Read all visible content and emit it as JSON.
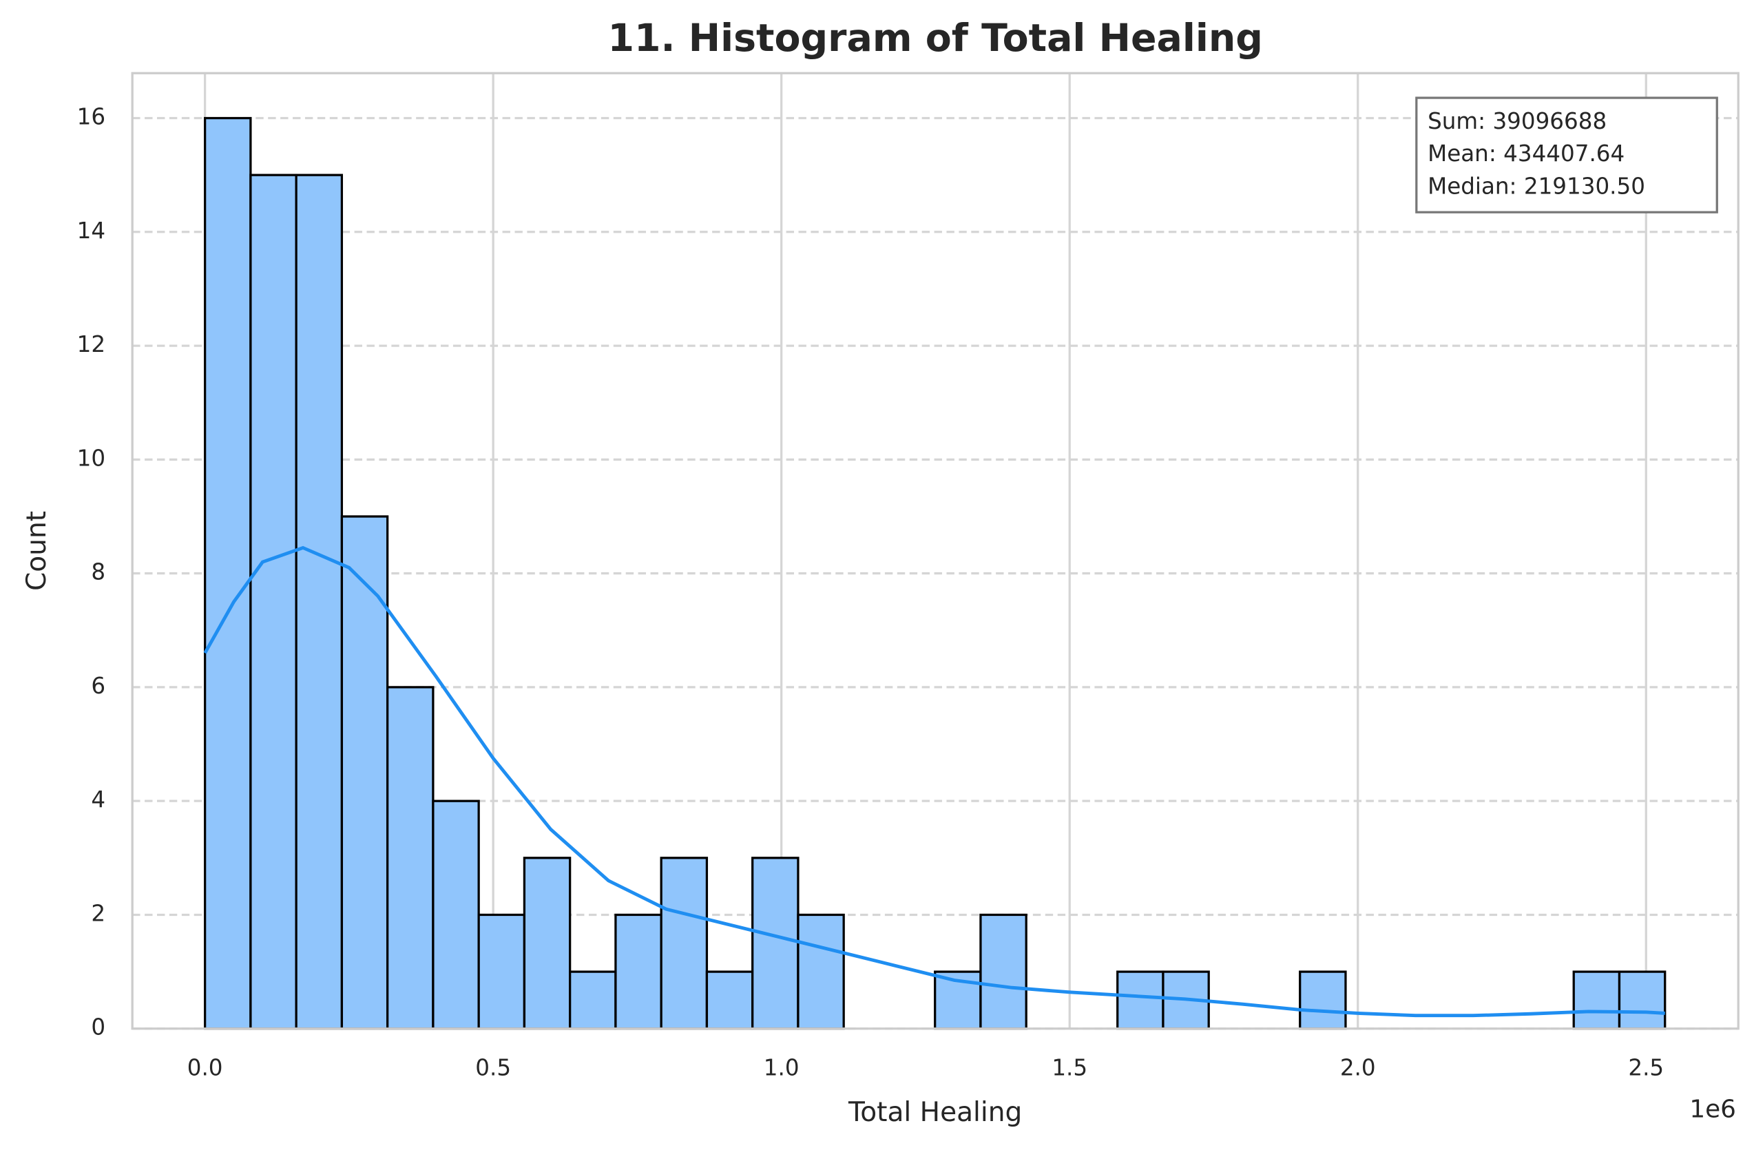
{
  "chart_data": {
    "type": "histogram",
    "title": "11. Histogram of Total Healing",
    "x_label": "Total Healing",
    "y_label": "Count",
    "x_offset_label": "1e6",
    "bins": [
      0,
      79150,
      158300,
      237450,
      316600,
      395750,
      474900,
      554050,
      633200,
      712350,
      791500,
      870650,
      949800,
      1028950,
      1108100,
      1187250,
      1266400,
      1345550,
      1424700,
      1503850,
      1583000,
      1662150,
      1741300,
      1820450,
      1899600,
      1978750,
      2057900,
      2137050,
      2216200,
      2295350,
      2374500,
      2453650,
      2532800
    ],
    "counts": [
      16,
      15,
      15,
      9,
      6,
      4,
      2,
      3,
      1,
      2,
      3,
      1,
      3,
      2,
      0,
      0,
      1,
      2,
      0,
      0,
      1,
      1,
      0,
      0,
      1,
      0,
      0,
      0,
      0,
      0,
      1,
      1
    ],
    "color": "#90c5fc",
    "edge_color": "#000000",
    "kde": {
      "color": "#1f8ef1",
      "x": [
        0,
        50000,
        100000,
        170000,
        250000,
        300000,
        400000,
        500000,
        600000,
        700000,
        800000,
        900000,
        1000000,
        1100000,
        1200000,
        1300000,
        1400000,
        1500000,
        1600000,
        1700000,
        1800000,
        1900000,
        2000000,
        2100000,
        2200000,
        2300000,
        2400000,
        2500000,
        2532800
      ],
      "y": [
        6.6,
        7.5,
        8.2,
        8.45,
        8.1,
        7.6,
        6.2,
        4.75,
        3.5,
        2.6,
        2.1,
        1.85,
        1.6,
        1.35,
        1.1,
        0.85,
        0.72,
        0.64,
        0.58,
        0.52,
        0.43,
        0.33,
        0.27,
        0.23,
        0.23,
        0.26,
        0.3,
        0.29,
        0.27
      ]
    },
    "annotations": [
      "Sum: 39096688",
      "Mean: 434407.64",
      "Median: 219130.50"
    ],
    "xlim": [
      -126000,
      2660000
    ],
    "ylim": [
      0,
      16.79
    ],
    "xticks": [
      {
        "value": 0,
        "label": "0.0"
      },
      {
        "value": 500000,
        "label": "0.5"
      },
      {
        "value": 1000000,
        "label": "1.0"
      },
      {
        "value": 1500000,
        "label": "1.5"
      },
      {
        "value": 2000000,
        "label": "2.0"
      },
      {
        "value": 2500000,
        "label": "2.5"
      }
    ],
    "yticks": [
      0,
      2,
      4,
      6,
      8,
      10,
      12,
      14,
      16
    ],
    "grid": true
  }
}
